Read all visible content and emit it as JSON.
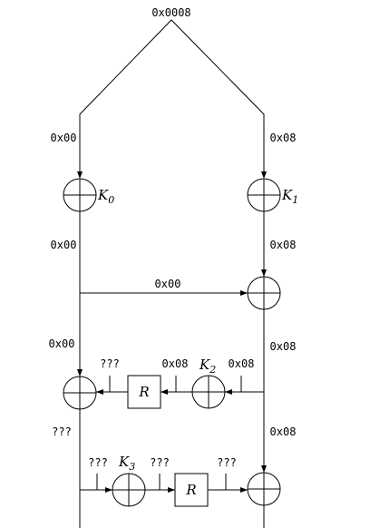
{
  "labels": {
    "top_input": "0x0008",
    "left_in": "0x00",
    "right_in": "0x08",
    "left_after_k0": "0x00",
    "right_after_k1": "0x08",
    "cross_mid": "0x00",
    "left_before_xor3": "0x00",
    "right_before_k2": "0x08",
    "after_k2_left": "0x08",
    "k2_in_right": "0x08",
    "r1_out": "???",
    "left_after_xor3": "???",
    "right_lower": "0x08",
    "k3_in": "???",
    "k3_out": "???",
    "r2_out": "???"
  },
  "keys": {
    "k0": {
      "base": "K",
      "sub": "0"
    },
    "k1": {
      "base": "K",
      "sub": "1"
    },
    "k2": {
      "base": "K",
      "sub": "2"
    },
    "k3": {
      "base": "K",
      "sub": "3"
    }
  },
  "boxes": {
    "r1": "R",
    "r2": "R"
  }
}
